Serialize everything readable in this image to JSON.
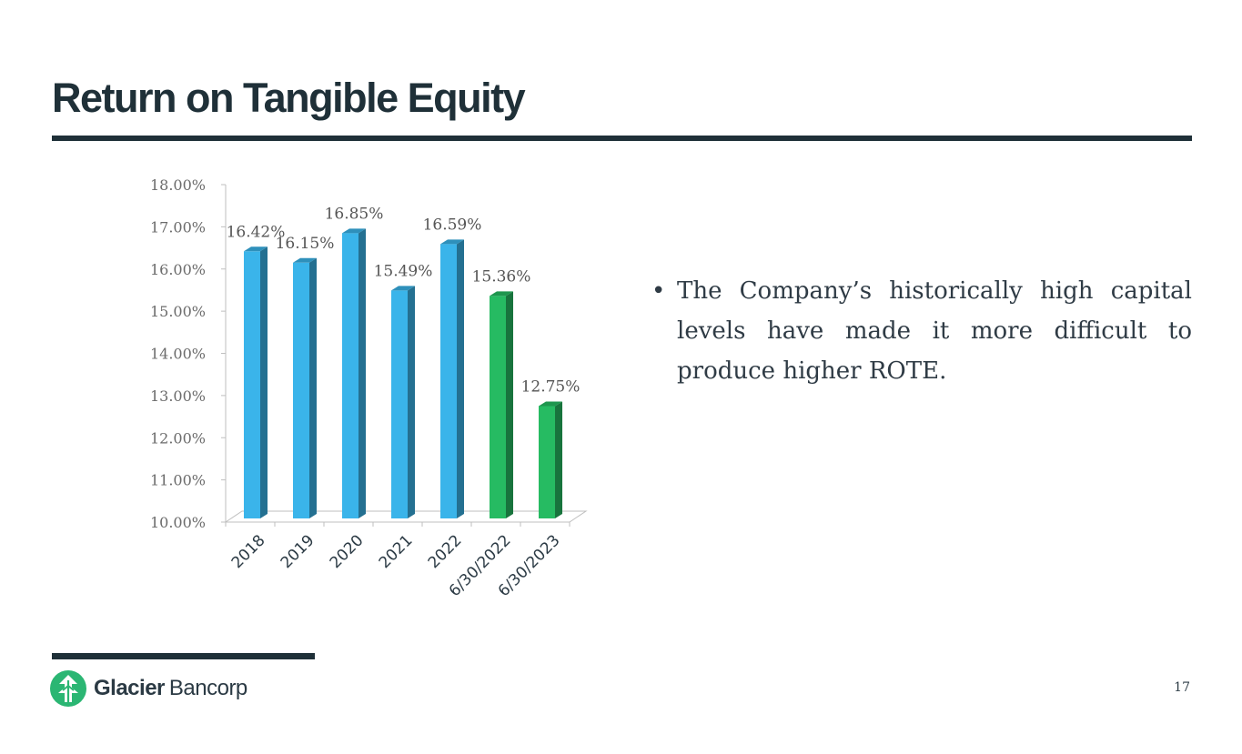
{
  "slide": {
    "title": "Return on Tangible Equity",
    "bullet_mark": "•",
    "bullet": "The Company’s historically high capital levels have made it more difficult to produce higher ROTE.",
    "page_number": "17"
  },
  "brand": {
    "name_bold": "Glacier",
    "name_light": "Bancorp",
    "accent": "#2bb673",
    "dark": "#1f3038"
  },
  "chart_data": {
    "type": "bar",
    "title": "",
    "xlabel": "",
    "ylabel": "",
    "ylim": [
      10,
      18
    ],
    "y_ticks": [
      "10.00%",
      "11.00%",
      "12.00%",
      "13.00%",
      "14.00%",
      "15.00%",
      "16.00%",
      "17.00%",
      "18.00%"
    ],
    "categories": [
      "2018",
      "2019",
      "2020",
      "2021",
      "2022",
      "6/30/2022",
      "6/30/2023"
    ],
    "values": [
      16.42,
      16.15,
      16.85,
      15.49,
      16.59,
      15.36,
      12.75
    ],
    "value_labels": [
      "16.42%",
      "16.15%",
      "16.85%",
      "15.49%",
      "16.59%",
      "15.36%",
      "12.75%"
    ],
    "bar_colors": [
      "#3ab4ea",
      "#3ab4ea",
      "#3ab4ea",
      "#3ab4ea",
      "#3ab4ea",
      "#26bb62",
      "#26bb62"
    ],
    "grid": false,
    "legend": "none"
  }
}
